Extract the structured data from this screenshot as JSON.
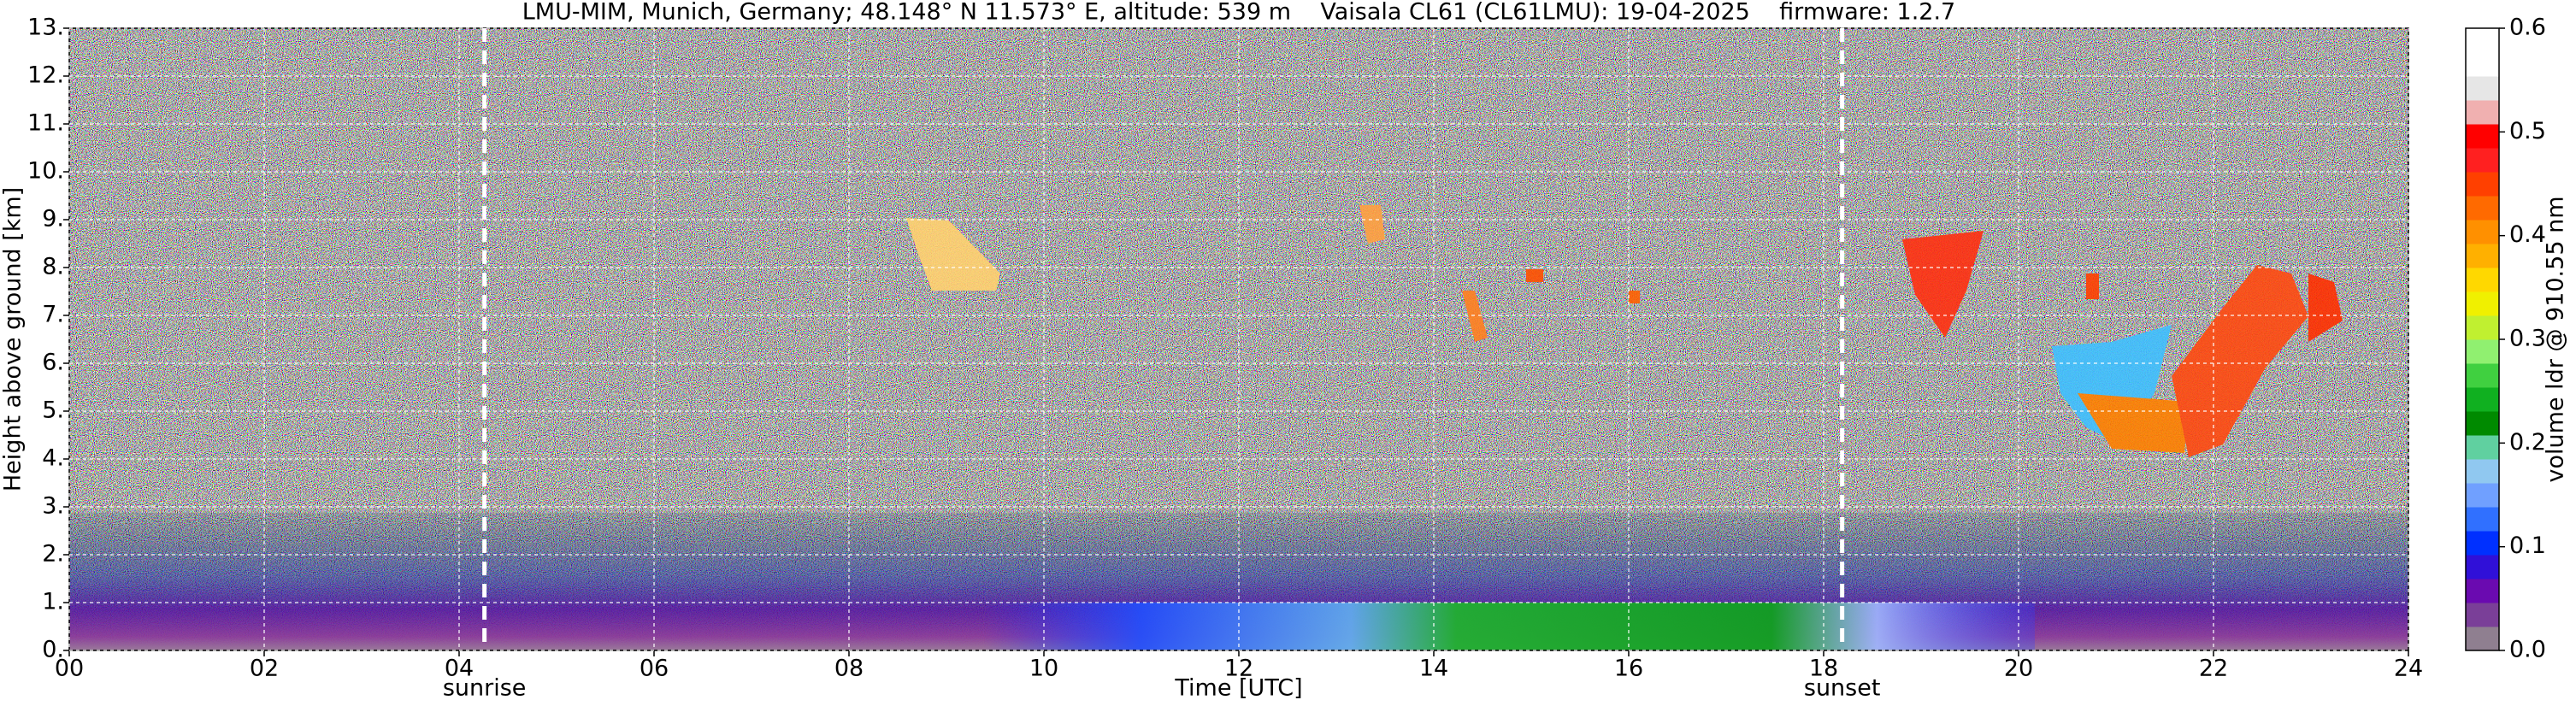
{
  "chart_data": {
    "type": "heatmap",
    "title": "LMU-MIM, Munich, Germany; 48.148° N 11.573° E, altitude: 539 m    Vaisala CL61 (CL61LMU): 19-04-2025    firmware: 1.2.7",
    "xlabel": "Time [UTC]",
    "ylabel": "Height above ground [km]",
    "xlim": [
      0,
      24
    ],
    "xticks": [
      {
        "value": 0,
        "label": "00"
      },
      {
        "value": 2,
        "label": "02"
      },
      {
        "value": 4,
        "label": "04"
      },
      {
        "value": 6,
        "label": "06"
      },
      {
        "value": 8,
        "label": "08"
      },
      10,
      12,
      14,
      16,
      18,
      20,
      22,
      24
    ],
    "ylim": [
      0,
      13
    ],
    "yticks": [
      {
        "value": 0,
        "label": "0."
      },
      {
        "value": 1,
        "label": "1."
      },
      {
        "value": 2,
        "label": "2."
      },
      {
        "value": 3,
        "label": "3."
      },
      {
        "value": 4,
        "label": "4."
      },
      {
        "value": 5,
        "label": "5."
      },
      {
        "value": 6,
        "label": "6."
      },
      {
        "value": 7,
        "label": "7."
      },
      {
        "value": 8,
        "label": "8."
      },
      {
        "value": 9,
        "label": "9."
      },
      {
        "value": 10,
        "label": "10."
      },
      {
        "value": 11,
        "label": "11."
      },
      {
        "value": 12,
        "label": "12."
      },
      {
        "value": 13,
        "label": "13."
      }
    ],
    "grid": true,
    "annotations": [
      {
        "label": "sunrise",
        "x": 4.26
      },
      {
        "label": "sunset",
        "x": 18.19
      }
    ],
    "colorbar": {
      "label": "volume ldr @ 910.55 nm",
      "lim": [
        0,
        0.6
      ],
      "ticks": [
        {
          "value": 0,
          "label": "0.0"
        },
        0.1,
        0.2,
        0.3,
        0.4,
        0.5,
        0.6
      ],
      "colors": [
        "#8f7f90",
        "#7a3f98",
        "#6a0ab0",
        "#3010d8",
        "#0030ff",
        "#3070ff",
        "#70a0ff",
        "#90c8f0",
        "#60d0a0",
        "#008a00",
        "#10b020",
        "#40d040",
        "#90f070",
        "#c0f030",
        "#f0f000",
        "#ffd800",
        "#ffb000",
        "#ff9000",
        "#ff6a00",
        "#ff4000",
        "#ff2020",
        "#ff0000",
        "#f0b0b0",
        "#e6e6e6",
        "#ffffff",
        "#ffffff"
      ]
    }
  }
}
